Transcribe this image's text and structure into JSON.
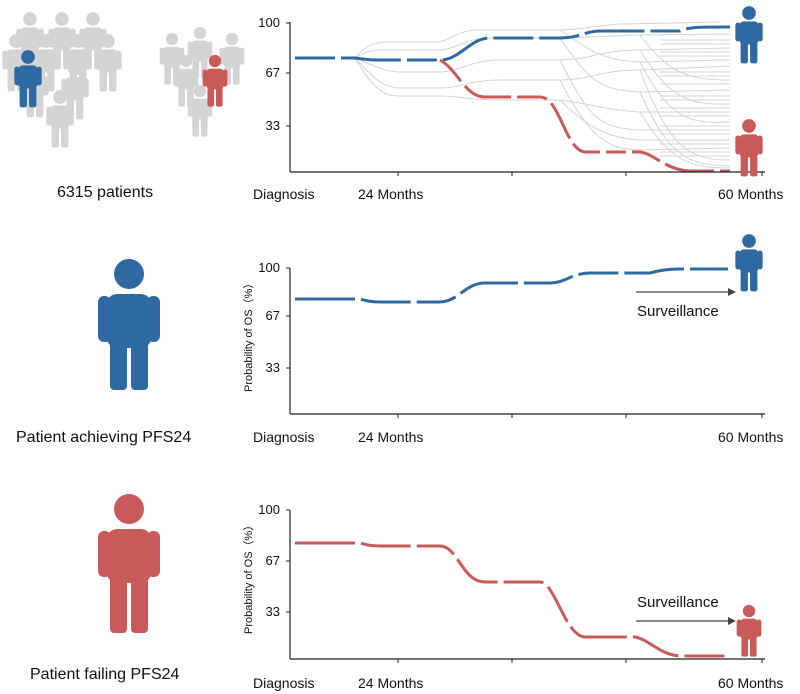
{
  "colors": {
    "blue": "#2e6aa1",
    "red": "#c85a5a",
    "gray": "#d4d4d4",
    "axis": "#222222"
  },
  "panels": [
    {
      "id": "all",
      "left_label": "6315 patients",
      "ylabel": "",
      "yticks": [
        "100",
        "67",
        "33"
      ],
      "xticks": [
        "Diagnosis",
        "24 Months",
        "60 Months"
      ],
      "annotation": ""
    },
    {
      "id": "achieving",
      "left_label": "Patient achieving PFS24",
      "ylabel": "Probability of OS（%）",
      "yticks": [
        "100",
        "67",
        "33"
      ],
      "xticks": [
        "Diagnosis",
        "24 Months",
        "60 Months"
      ],
      "annotation": "Surveillance"
    },
    {
      "id": "failing",
      "left_label": "Patient failing PFS24",
      "ylabel": "Probability of OS（%）",
      "yticks": [
        "100",
        "67",
        "33"
      ],
      "xticks": [
        "Diagnosis",
        "24 Months",
        "60 Months"
      ],
      "annotation": "Surveillance"
    }
  ],
  "icons": [
    "crowd-icon",
    "small-group-icon",
    "person-blue-icon",
    "person-red-icon"
  ]
}
